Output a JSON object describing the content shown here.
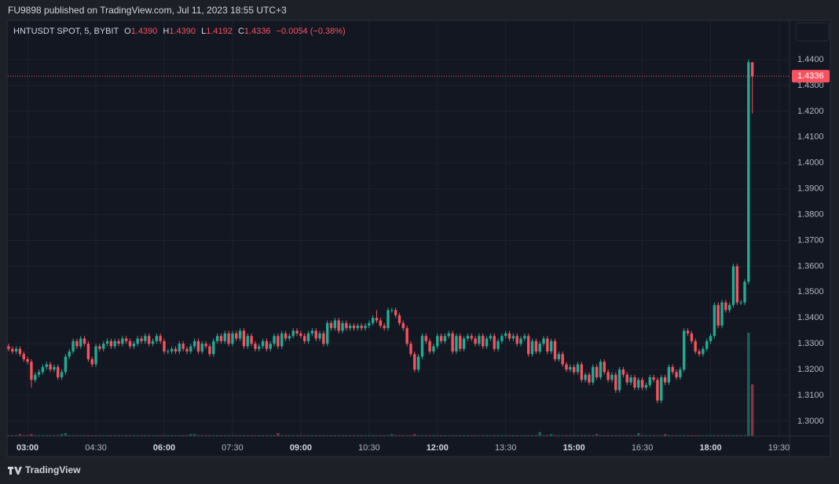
{
  "header": {
    "published": "FU9898 published on TradingView.com, Jul 11, 2023 18:55 UTC+3"
  },
  "footer": {
    "brand": "TradingView"
  },
  "chart_data": {
    "type": "candlestick",
    "legend": {
      "symbol": "HNTUSDT SPOT, 5, BYBIT",
      "o_label": "O",
      "o": "1.4390",
      "h_label": "H",
      "h": "1.4390",
      "l_label": "L",
      "l": "1.4192",
      "c_label": "C",
      "c": "1.4336",
      "change": "−0.0054 (−0.38%)"
    },
    "up_color": "#22ab94",
    "down_color": "#f7525f",
    "grid": true,
    "xlim": [
      154,
      1184
    ],
    "ylim": [
      1.2942,
      1.4546
    ],
    "xticks": [
      {
        "value": 180,
        "label": "03:00"
      },
      {
        "value": 270,
        "label": "04:30"
      },
      {
        "value": 360,
        "label": "06:00"
      },
      {
        "value": 450,
        "label": "07:30"
      },
      {
        "value": 540,
        "label": "09:00"
      },
      {
        "value": 630,
        "label": "10:30"
      },
      {
        "value": 720,
        "label": "12:00"
      },
      {
        "value": 810,
        "label": "13:30"
      },
      {
        "value": 900,
        "label": "15:00"
      },
      {
        "value": 990,
        "label": "16:30"
      },
      {
        "value": 1080,
        "label": "18:00"
      },
      {
        "value": 1170,
        "label": "19:30"
      }
    ],
    "yticks": [
      {
        "value": 1.3,
        "label": "1.3000"
      },
      {
        "value": 1.31,
        "label": "1.3100"
      },
      {
        "value": 1.32,
        "label": "1.3200"
      },
      {
        "value": 1.33,
        "label": "1.3300"
      },
      {
        "value": 1.34,
        "label": "1.3400"
      },
      {
        "value": 1.35,
        "label": "1.3500"
      },
      {
        "value": 1.36,
        "label": "1.3600"
      },
      {
        "value": 1.37,
        "label": "1.3700"
      },
      {
        "value": 1.38,
        "label": "1.3800"
      },
      {
        "value": 1.39,
        "label": "1.3900"
      },
      {
        "value": 1.4,
        "label": "1.4000"
      },
      {
        "value": 1.41,
        "label": "1.4100"
      },
      {
        "value": 1.42,
        "label": "1.4200"
      },
      {
        "value": 1.43,
        "label": "1.4300"
      },
      {
        "value": 1.44,
        "label": "1.4400"
      }
    ],
    "x": [
      155,
      160,
      165,
      170,
      175,
      180,
      185,
      190,
      195,
      200,
      205,
      210,
      215,
      220,
      225,
      230,
      235,
      240,
      245,
      250,
      255,
      260,
      265,
      270,
      275,
      280,
      285,
      290,
      295,
      300,
      305,
      310,
      315,
      320,
      325,
      330,
      335,
      340,
      345,
      350,
      355,
      360,
      365,
      370,
      375,
      380,
      385,
      390,
      395,
      400,
      405,
      410,
      415,
      420,
      425,
      430,
      435,
      440,
      445,
      450,
      455,
      460,
      465,
      470,
      475,
      480,
      485,
      490,
      495,
      500,
      505,
      510,
      515,
      520,
      525,
      530,
      535,
      540,
      545,
      550,
      555,
      560,
      565,
      570,
      575,
      580,
      585,
      590,
      595,
      600,
      605,
      610,
      615,
      620,
      625,
      630,
      635,
      640,
      645,
      650,
      655,
      660,
      665,
      670,
      675,
      680,
      685,
      690,
      695,
      700,
      705,
      710,
      715,
      720,
      725,
      730,
      735,
      740,
      745,
      750,
      755,
      760,
      765,
      770,
      775,
      780,
      785,
      790,
      795,
      800,
      805,
      810,
      815,
      820,
      825,
      830,
      835,
      840,
      845,
      850,
      855,
      860,
      865,
      870,
      875,
      880,
      885,
      890,
      895,
      900,
      905,
      910,
      915,
      920,
      925,
      930,
      935,
      940,
      945,
      950,
      955,
      960,
      965,
      970,
      975,
      980,
      985,
      990,
      995,
      1000,
      1005,
      1010,
      1015,
      1020,
      1025,
      1030,
      1035,
      1040,
      1045,
      1050,
      1055,
      1060,
      1065,
      1070,
      1075,
      1080,
      1085,
      1090,
      1095,
      1100,
      1105,
      1110,
      1115,
      1120,
      1125,
      1130,
      1135
    ],
    "open": [
      1.329,
      1.328,
      1.327,
      1.328,
      1.326,
      1.324,
      1.323,
      1.316,
      1.318,
      1.319,
      1.321,
      1.322,
      1.32,
      1.321,
      1.317,
      1.319,
      1.325,
      1.327,
      1.331,
      1.329,
      1.332,
      1.33,
      1.324,
      1.322,
      1.329,
      1.328,
      1.33,
      1.331,
      1.329,
      1.331,
      1.33,
      1.332,
      1.331,
      1.329,
      1.33,
      1.332,
      1.331,
      1.333,
      1.33,
      1.331,
      1.333,
      1.331,
      1.327,
      1.327,
      1.328,
      1.327,
      1.33,
      1.328,
      1.327,
      1.329,
      1.331,
      1.327,
      1.33,
      1.329,
      1.326,
      1.331,
      1.333,
      1.331,
      1.334,
      1.33,
      1.334,
      1.332,
      1.335,
      1.329,
      1.333,
      1.33,
      1.328,
      1.329,
      1.331,
      1.328,
      1.33,
      1.333,
      1.329,
      1.334,
      1.332,
      1.333,
      1.335,
      1.334,
      1.333,
      1.331,
      1.334,
      1.335,
      1.332,
      1.334,
      1.33,
      1.338,
      1.336,
      1.339,
      1.335,
      1.338,
      1.336,
      1.337,
      1.336,
      1.337,
      1.336,
      1.337,
      1.338,
      1.34,
      1.339,
      1.337,
      1.336,
      1.343,
      1.343,
      1.341,
      1.338,
      1.336,
      1.33,
      1.326,
      1.32,
      1.325,
      1.333,
      1.331,
      1.327,
      1.329,
      1.333,
      1.331,
      1.333,
      1.334,
      1.327,
      1.333,
      1.328,
      1.332,
      1.333,
      1.332,
      1.33,
      1.333,
      1.329,
      1.332,
      1.333,
      1.328,
      1.331,
      1.333,
      1.334,
      1.332,
      1.333,
      1.33,
      1.332,
      1.333,
      1.326,
      1.331,
      1.327,
      1.33,
      1.332,
      1.327,
      1.331,
      1.324,
      1.326,
      1.322,
      1.32,
      1.321,
      1.319,
      1.322,
      1.316,
      1.318,
      1.315,
      1.321,
      1.317,
      1.323,
      1.319,
      1.316,
      1.318,
      1.312,
      1.32,
      1.318,
      1.315,
      1.317,
      1.313,
      1.316,
      1.313,
      1.314,
      1.317,
      1.316,
      1.308,
      1.317,
      1.315,
      1.321,
      1.319,
      1.317,
      1.32,
      1.335,
      1.334,
      1.331,
      1.327,
      1.326,
      1.328,
      1.331,
      1.333,
      1.345,
      1.337,
      1.346,
      1.343,
      1.345,
      1.36,
      1.346,
      1.346,
      1.354,
      1.439
    ],
    "high": [
      1.33,
      1.329,
      1.329,
      1.329,
      1.327,
      1.325,
      1.324,
      1.319,
      1.32,
      1.322,
      1.323,
      1.323,
      1.322,
      1.322,
      1.32,
      1.326,
      1.328,
      1.332,
      1.332,
      1.333,
      1.333,
      1.331,
      1.325,
      1.33,
      1.33,
      1.331,
      1.332,
      1.332,
      1.332,
      1.332,
      1.333,
      1.333,
      1.332,
      1.331,
      1.333,
      1.333,
      1.334,
      1.334,
      1.332,
      1.334,
      1.334,
      1.332,
      1.328,
      1.329,
      1.329,
      1.331,
      1.331,
      1.329,
      1.33,
      1.332,
      1.332,
      1.331,
      1.331,
      1.33,
      1.332,
      1.334,
      1.334,
      1.335,
      1.335,
      1.335,
      1.335,
      1.336,
      1.336,
      1.334,
      1.334,
      1.331,
      1.33,
      1.332,
      1.332,
      1.331,
      1.334,
      1.334,
      1.335,
      1.335,
      1.334,
      1.336,
      1.336,
      1.335,
      1.334,
      1.335,
      1.336,
      1.336,
      1.335,
      1.335,
      1.339,
      1.339,
      1.34,
      1.34,
      1.339,
      1.339,
      1.338,
      1.338,
      1.338,
      1.338,
      1.338,
      1.339,
      1.341,
      1.343,
      1.34,
      1.338,
      1.344,
      1.344,
      1.344,
      1.342,
      1.339,
      1.337,
      1.331,
      1.327,
      1.326,
      1.334,
      1.334,
      1.332,
      1.33,
      1.334,
      1.334,
      1.334,
      1.335,
      1.335,
      1.334,
      1.334,
      1.333,
      1.334,
      1.334,
      1.333,
      1.334,
      1.334,
      1.333,
      1.334,
      1.334,
      1.332,
      1.334,
      1.335,
      1.335,
      1.334,
      1.334,
      1.333,
      1.334,
      1.334,
      1.332,
      1.332,
      1.331,
      1.333,
      1.333,
      1.332,
      1.332,
      1.327,
      1.327,
      1.323,
      1.322,
      1.322,
      1.323,
      1.323,
      1.319,
      1.319,
      1.322,
      1.322,
      1.324,
      1.324,
      1.32,
      1.319,
      1.319,
      1.321,
      1.321,
      1.319,
      1.318,
      1.318,
      1.317,
      1.317,
      1.315,
      1.318,
      1.318,
      1.317,
      1.318,
      1.318,
      1.322,
      1.322,
      1.32,
      1.321,
      1.336,
      1.336,
      1.335,
      1.332,
      1.328,
      1.329,
      1.332,
      1.334,
      1.346,
      1.346,
      1.347,
      1.347,
      1.346,
      1.361,
      1.361,
      1.347,
      1.355,
      1.44,
      1.439
    ],
    "low": [
      1.327,
      1.326,
      1.326,
      1.325,
      1.323,
      1.322,
      1.313,
      1.315,
      1.317,
      1.318,
      1.32,
      1.319,
      1.319,
      1.316,
      1.316,
      1.318,
      1.324,
      1.326,
      1.328,
      1.328,
      1.329,
      1.323,
      1.321,
      1.321,
      1.327,
      1.327,
      1.329,
      1.328,
      1.328,
      1.329,
      1.329,
      1.33,
      1.328,
      1.328,
      1.329,
      1.33,
      1.33,
      1.329,
      1.329,
      1.33,
      1.33,
      1.326,
      1.326,
      1.326,
      1.326,
      1.326,
      1.327,
      1.326,
      1.326,
      1.328,
      1.326,
      1.326,
      1.328,
      1.325,
      1.325,
      1.33,
      1.33,
      1.33,
      1.329,
      1.329,
      1.331,
      1.331,
      1.328,
      1.328,
      1.329,
      1.327,
      1.327,
      1.328,
      1.327,
      1.327,
      1.329,
      1.328,
      1.328,
      1.331,
      1.331,
      1.332,
      1.333,
      1.332,
      1.33,
      1.33,
      1.333,
      1.331,
      1.331,
      1.329,
      1.329,
      1.335,
      1.335,
      1.334,
      1.334,
      1.335,
      1.335,
      1.335,
      1.335,
      1.335,
      1.335,
      1.336,
      1.337,
      1.338,
      1.336,
      1.335,
      1.335,
      1.342,
      1.34,
      1.337,
      1.335,
      1.329,
      1.325,
      1.319,
      1.319,
      1.324,
      1.33,
      1.326,
      1.326,
      1.328,
      1.33,
      1.33,
      1.332,
      1.326,
      1.326,
      1.327,
      1.327,
      1.331,
      1.331,
      1.329,
      1.329,
      1.328,
      1.328,
      1.331,
      1.327,
      1.327,
      1.33,
      1.332,
      1.331,
      1.331,
      1.329,
      1.329,
      1.331,
      1.325,
      1.325,
      1.326,
      1.326,
      1.329,
      1.326,
      1.326,
      1.323,
      1.323,
      1.321,
      1.319,
      1.319,
      1.318,
      1.318,
      1.315,
      1.315,
      1.314,
      1.314,
      1.316,
      1.316,
      1.318,
      1.315,
      1.315,
      1.311,
      1.311,
      1.317,
      1.314,
      1.314,
      1.312,
      1.312,
      1.312,
      1.312,
      1.313,
      1.315,
      1.307,
      1.307,
      1.314,
      1.314,
      1.318,
      1.316,
      1.316,
      1.319,
      1.333,
      1.33,
      1.326,
      1.325,
      1.325,
      1.327,
      1.33,
      1.332,
      1.336,
      1.336,
      1.342,
      1.342,
      1.344,
      1.345,
      1.345,
      1.345,
      1.353,
      1.4192
    ],
    "close": [
      1.328,
      1.327,
      1.328,
      1.326,
      1.324,
      1.323,
      1.316,
      1.318,
      1.319,
      1.321,
      1.322,
      1.32,
      1.321,
      1.317,
      1.319,
      1.325,
      1.327,
      1.331,
      1.329,
      1.332,
      1.33,
      1.324,
      1.322,
      1.329,
      1.328,
      1.33,
      1.331,
      1.329,
      1.331,
      1.33,
      1.332,
      1.331,
      1.329,
      1.33,
      1.332,
      1.331,
      1.333,
      1.33,
      1.331,
      1.333,
      1.331,
      1.327,
      1.327,
      1.328,
      1.327,
      1.33,
      1.328,
      1.327,
      1.329,
      1.331,
      1.327,
      1.33,
      1.329,
      1.326,
      1.331,
      1.333,
      1.331,
      1.334,
      1.33,
      1.334,
      1.332,
      1.335,
      1.329,
      1.333,
      1.33,
      1.328,
      1.329,
      1.331,
      1.328,
      1.33,
      1.333,
      1.329,
      1.334,
      1.332,
      1.333,
      1.335,
      1.334,
      1.333,
      1.331,
      1.334,
      1.335,
      1.332,
      1.334,
      1.33,
      1.338,
      1.336,
      1.339,
      1.335,
      1.338,
      1.336,
      1.337,
      1.336,
      1.337,
      1.336,
      1.337,
      1.338,
      1.34,
      1.339,
      1.337,
      1.336,
      1.343,
      1.343,
      1.341,
      1.338,
      1.336,
      1.33,
      1.326,
      1.32,
      1.325,
      1.333,
      1.331,
      1.327,
      1.329,
      1.333,
      1.331,
      1.333,
      1.334,
      1.327,
      1.333,
      1.328,
      1.332,
      1.333,
      1.332,
      1.33,
      1.333,
      1.329,
      1.332,
      1.333,
      1.328,
      1.331,
      1.333,
      1.334,
      1.332,
      1.333,
      1.33,
      1.332,
      1.333,
      1.326,
      1.331,
      1.327,
      1.33,
      1.332,
      1.327,
      1.331,
      1.324,
      1.326,
      1.322,
      1.32,
      1.321,
      1.319,
      1.322,
      1.316,
      1.318,
      1.315,
      1.321,
      1.317,
      1.323,
      1.319,
      1.316,
      1.318,
      1.312,
      1.32,
      1.318,
      1.315,
      1.317,
      1.313,
      1.316,
      1.313,
      1.314,
      1.317,
      1.316,
      1.308,
      1.317,
      1.315,
      1.321,
      1.319,
      1.317,
      1.32,
      1.335,
      1.334,
      1.331,
      1.327,
      1.326,
      1.328,
      1.331,
      1.333,
      1.345,
      1.337,
      1.346,
      1.343,
      1.345,
      1.36,
      1.346,
      1.346,
      1.354,
      1.439,
      1.4336
    ],
    "volume": [
      1,
      1,
      1,
      2,
      1,
      1,
      2,
      1,
      1,
      1,
      1,
      1,
      1,
      1,
      2,
      3,
      1,
      1,
      1,
      1,
      1,
      1,
      1,
      1,
      1,
      1,
      1,
      1,
      1,
      1,
      1,
      1,
      1,
      1,
      1,
      1,
      1,
      1,
      1,
      1,
      1,
      1,
      1,
      1,
      1,
      1,
      1,
      1,
      2,
      2,
      1,
      1,
      1,
      1,
      1,
      1,
      1,
      1,
      1,
      1,
      1,
      1,
      1,
      1,
      1,
      1,
      1,
      1,
      1,
      1,
      1,
      3,
      1,
      1,
      1,
      1,
      1,
      1,
      1,
      1,
      1,
      1,
      1,
      1,
      1,
      1,
      1,
      1,
      1,
      1,
      1,
      1,
      1,
      1,
      1,
      1,
      1,
      1,
      1,
      1,
      1,
      2,
      1,
      1,
      1,
      1,
      1,
      2,
      1,
      1,
      1,
      1,
      1,
      1,
      1,
      1,
      1,
      1,
      1,
      1,
      1,
      1,
      1,
      1,
      1,
      1,
      1,
      1,
      1,
      1,
      1,
      1,
      1,
      1,
      1,
      1,
      1,
      1,
      1,
      1,
      4,
      1,
      1,
      2,
      1,
      1,
      1,
      1,
      1,
      1,
      1,
      1,
      1,
      1,
      1,
      2,
      1,
      1,
      1,
      1,
      1,
      1,
      1,
      1,
      1,
      1,
      3,
      1,
      1,
      1,
      1,
      1,
      1,
      2,
      1,
      1,
      1,
      1,
      1,
      1,
      1,
      1,
      1,
      1,
      1,
      1,
      1,
      1,
      1,
      1,
      1,
      1,
      1,
      1,
      1,
      100,
      50
    ]
  }
}
